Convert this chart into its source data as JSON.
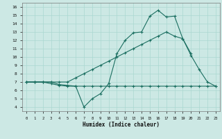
{
  "xlabel": "Humidex (Indice chaleur)",
  "bg_color": "#cce8e4",
  "grid_color": "#aad8d0",
  "line_color": "#1a6e60",
  "xlim": [
    -0.5,
    23.5
  ],
  "ylim": [
    3.5,
    16.5
  ],
  "xticks": [
    0,
    1,
    2,
    3,
    4,
    5,
    6,
    7,
    8,
    9,
    10,
    11,
    12,
    13,
    14,
    15,
    16,
    17,
    18,
    19,
    20,
    21,
    22,
    23
  ],
  "yticks": [
    4,
    5,
    6,
    7,
    8,
    9,
    10,
    11,
    12,
    13,
    14,
    15,
    16
  ],
  "series1_x": [
    0,
    1,
    2,
    3,
    4,
    5,
    6,
    7,
    8,
    9,
    10,
    11,
    12,
    13,
    14,
    15,
    16,
    17,
    18,
    19,
    20,
    21,
    22,
    23
  ],
  "series1_y": [
    7.0,
    7.0,
    7.0,
    6.8,
    6.6,
    6.5,
    6.5,
    6.5,
    6.5,
    6.5,
    6.5,
    6.5,
    6.5,
    6.5,
    6.5,
    6.5,
    6.5,
    6.5,
    6.5,
    6.5,
    6.5,
    6.5,
    6.5,
    6.5
  ],
  "series2_x": [
    0,
    1,
    2,
    3,
    4,
    5,
    6,
    7,
    8,
    9,
    10,
    11,
    12,
    13,
    14,
    15,
    16,
    17,
    18,
    19,
    20
  ],
  "series2_y": [
    7.0,
    7.0,
    7.0,
    7.0,
    6.7,
    6.6,
    6.5,
    4.0,
    5.0,
    5.6,
    6.8,
    10.4,
    12.0,
    12.9,
    13.0,
    14.9,
    15.6,
    14.8,
    14.9,
    12.2,
    10.4
  ],
  "series3_x": [
    0,
    1,
    2,
    3,
    4,
    5,
    6,
    7,
    8,
    9,
    10,
    11,
    12,
    13,
    14,
    15,
    16,
    17,
    18,
    19,
    20,
    21,
    22,
    23
  ],
  "series3_y": [
    7.0,
    7.0,
    7.0,
    7.0,
    7.0,
    7.0,
    7.5,
    8.0,
    8.5,
    9.0,
    9.5,
    10.0,
    10.5,
    11.0,
    11.5,
    12.0,
    12.5,
    13.0,
    12.5,
    12.2,
    10.2,
    8.5,
    7.0,
    6.5
  ]
}
